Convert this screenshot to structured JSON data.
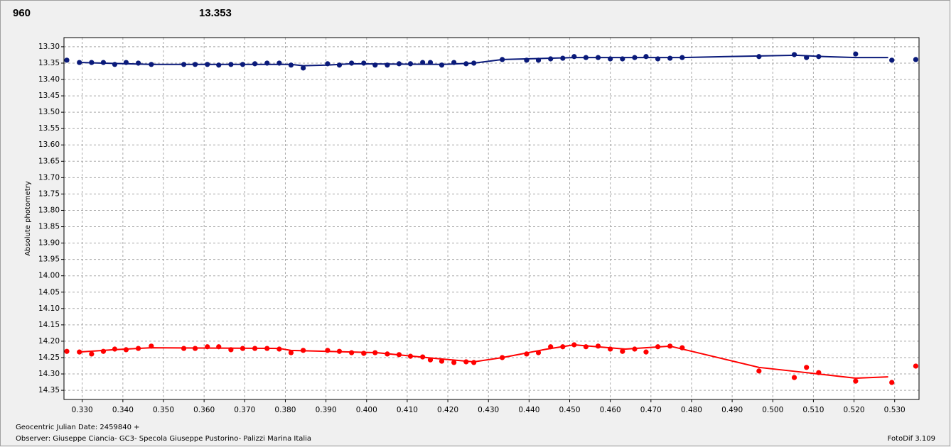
{
  "chart_data": {
    "type": "scatter",
    "ylabel": "Absolute photometry",
    "xlabel": "Geocentric Julian Date: 2459840 +",
    "annotations": [
      "960",
      "13.353",
      "Observer: Giuseppe Ciancia- GC3- Specola Giuseppe Pustorino- Palizzi Marina Italia",
      "FotoDif 3.109"
    ],
    "annotation_colors": [
      "#ff0000",
      "#0a1a7a",
      "#000000",
      "#000000"
    ],
    "xlim": [
      0.3255,
      0.536
    ],
    "ylim": [
      13.272,
      14.378
    ],
    "y_inverted": true,
    "grid": true,
    "xticks": [
      {
        "value": 0.33,
        "label": "0.330"
      },
      {
        "value": 0.34,
        "label": "0.340"
      },
      {
        "value": 0.35,
        "label": "0.350"
      },
      {
        "value": 0.36,
        "label": "0.360"
      },
      {
        "value": 0.37,
        "label": "0.370"
      },
      {
        "value": 0.38,
        "label": "0.380"
      },
      {
        "value": 0.39,
        "label": "0.390"
      },
      {
        "value": 0.4,
        "label": "0.400"
      },
      {
        "value": 0.41,
        "label": "0.410"
      },
      {
        "value": 0.42,
        "label": "0.420"
      },
      {
        "value": 0.43,
        "label": "0.430"
      },
      {
        "value": 0.44,
        "label": "0.440"
      },
      {
        "value": 0.45,
        "label": "0.450"
      },
      {
        "value": 0.46,
        "label": "0.460"
      },
      {
        "value": 0.47,
        "label": "0.470"
      },
      {
        "value": 0.48,
        "label": "0.480"
      },
      {
        "value": 0.49,
        "label": "0.490"
      },
      {
        "value": 0.5,
        "label": "0.500"
      },
      {
        "value": 0.51,
        "label": "0.510"
      },
      {
        "value": 0.52,
        "label": "0.520"
      },
      {
        "value": 0.53,
        "label": "0.530"
      }
    ],
    "yticks": [
      {
        "value": 13.3,
        "label": "13.30"
      },
      13.35,
      {
        "value": 13.4,
        "label": "13.40"
      },
      13.45,
      {
        "value": 13.5,
        "label": "13.50"
      },
      13.55,
      {
        "value": 13.6,
        "label": "13.60"
      },
      13.65,
      {
        "value": 13.7,
        "label": "13.70"
      },
      13.75,
      {
        "value": 13.8,
        "label": "13.80"
      },
      13.85,
      {
        "value": 13.9,
        "label": "13.90"
      },
      13.95,
      {
        "value": 14.0,
        "label": "14.00"
      },
      14.05,
      {
        "value": 14.1,
        "label": "14.10"
      },
      14.15,
      {
        "value": 14.2,
        "label": "14.20"
      },
      14.25,
      {
        "value": 14.3,
        "label": "14.30"
      },
      14.35
    ],
    "series": [
      {
        "mode": "markers",
        "color": "#0a1a7a",
        "x": [
          0.3262,
          0.3293,
          0.3323,
          0.3352,
          0.338,
          0.3408,
          0.3438,
          0.347,
          0.355,
          0.3578,
          0.3608,
          0.3636,
          0.3666,
          0.3695,
          0.3725,
          0.3755,
          0.3785,
          0.3814,
          0.3844,
          0.3904,
          0.3933,
          0.3963,
          0.3993,
          0.4021,
          0.4051,
          0.408,
          0.4108,
          0.4138,
          0.4157,
          0.4185,
          0.4215,
          0.4245,
          0.4264,
          0.4334,
          0.4394,
          0.4423,
          0.4453,
          0.4483,
          0.4511,
          0.454,
          0.457,
          0.46,
          0.463,
          0.466,
          0.4688,
          0.4717,
          0.4747,
          0.4777,
          0.4966,
          0.5053,
          0.5083,
          0.5113,
          0.5204,
          0.5293,
          0.5352
        ],
        "values": [
          13.341,
          13.348,
          13.348,
          13.348,
          13.354,
          13.348,
          13.35,
          13.354,
          13.354,
          13.354,
          13.354,
          13.356,
          13.354,
          13.354,
          13.352,
          13.35,
          13.35,
          13.356,
          13.365,
          13.352,
          13.356,
          13.35,
          13.35,
          13.356,
          13.356,
          13.352,
          13.352,
          13.348,
          13.348,
          13.356,
          13.348,
          13.352,
          13.35,
          13.339,
          13.341,
          13.341,
          13.337,
          13.335,
          13.33,
          13.333,
          13.333,
          13.337,
          13.337,
          13.333,
          13.33,
          13.337,
          13.335,
          13.333,
          13.33,
          13.324,
          13.333,
          13.33,
          13.322,
          13.341,
          13.339
        ]
      },
      {
        "mode": "lines",
        "color": "#0a1a7a",
        "x": [
          0.3293,
          0.347,
          0.3814,
          0.3844,
          0.3902,
          0.3963,
          0.4185,
          0.4264,
          0.4334,
          0.4511,
          0.4777,
          0.4966,
          0.5057,
          0.5127,
          0.5204,
          0.5284
        ],
        "values": [
          13.348,
          13.354,
          13.354,
          13.358,
          13.356,
          13.352,
          13.354,
          13.35,
          13.339,
          13.333,
          13.333,
          13.328,
          13.326,
          13.33,
          13.333,
          13.333
        ]
      },
      {
        "mode": "markers",
        "color": "#ff0000",
        "x": [
          0.3262,
          0.3293,
          0.3323,
          0.3352,
          0.338,
          0.3408,
          0.3438,
          0.347,
          0.355,
          0.3578,
          0.3608,
          0.3636,
          0.3666,
          0.3695,
          0.3725,
          0.3755,
          0.3785,
          0.3814,
          0.3844,
          0.3904,
          0.3933,
          0.3963,
          0.3993,
          0.4021,
          0.4051,
          0.408,
          0.4108,
          0.4138,
          0.4157,
          0.4185,
          0.4215,
          0.4245,
          0.4264,
          0.4334,
          0.4394,
          0.4423,
          0.4453,
          0.4483,
          0.4511,
          0.454,
          0.457,
          0.46,
          0.463,
          0.466,
          0.4688,
          0.4717,
          0.4747,
          0.4777,
          0.4966,
          0.5053,
          0.5083,
          0.5113,
          0.5204,
          0.5293,
          0.5352
        ],
        "values": [
          14.231,
          14.233,
          14.239,
          14.231,
          14.224,
          14.226,
          14.222,
          14.215,
          14.222,
          14.222,
          14.217,
          14.217,
          14.226,
          14.222,
          14.222,
          14.222,
          14.224,
          14.235,
          14.228,
          14.228,
          14.231,
          14.235,
          14.237,
          14.235,
          14.239,
          14.241,
          14.246,
          14.248,
          14.257,
          14.261,
          14.265,
          14.263,
          14.265,
          14.25,
          14.239,
          14.235,
          14.217,
          14.217,
          14.211,
          14.217,
          14.215,
          14.224,
          14.231,
          14.224,
          14.233,
          14.217,
          14.215,
          14.22,
          14.291,
          14.311,
          14.28,
          14.296,
          14.322,
          14.326,
          14.276
        ]
      },
      {
        "mode": "lines",
        "color": "#ff0000",
        "x": [
          0.3293,
          0.3377,
          0.347,
          0.3785,
          0.3814,
          0.4024,
          0.4164,
          0.4264,
          0.4334,
          0.4444,
          0.4511,
          0.4637,
          0.4747,
          0.4966,
          0.5083,
          0.5204,
          0.5284
        ],
        "values": [
          14.233,
          14.226,
          14.22,
          14.222,
          14.228,
          14.235,
          14.252,
          14.263,
          14.25,
          14.224,
          14.211,
          14.224,
          14.215,
          14.28,
          14.296,
          14.313,
          14.309
        ]
      }
    ]
  }
}
